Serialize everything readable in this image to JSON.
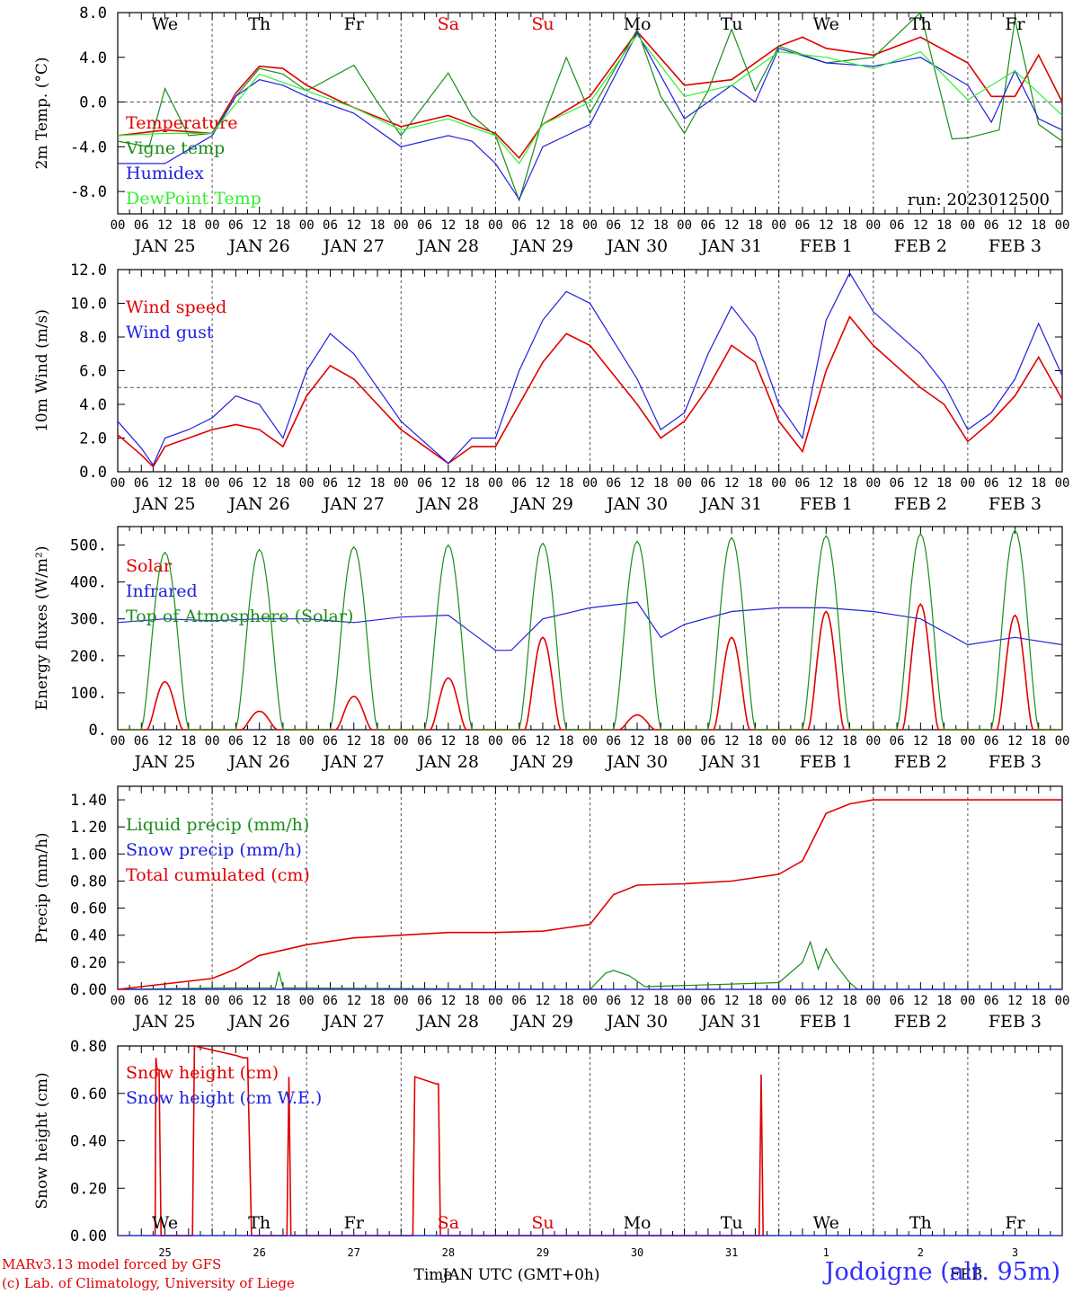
{
  "run_label": "run: 2023012500",
  "day_labels": [
    "We",
    "Th",
    "Fr",
    "Sa",
    "Su",
    "Mo",
    "Tu",
    "We",
    "Th",
    "Fr"
  ],
  "weekend_days": [
    "Sa",
    "Su"
  ],
  "hour_ticks": [
    "00",
    "06",
    "12",
    "18"
  ],
  "date_labels": [
    "JAN 25",
    "JAN 26",
    "JAN 27",
    "JAN 28",
    "JAN 29",
    "JAN 30",
    "JAN 31",
    "FEB  1",
    "FEB  2",
    "FEB  3"
  ],
  "bottom_day_numbers": [
    "25",
    "26",
    "27",
    "28",
    "29",
    "30",
    "31",
    "1",
    "2",
    "3"
  ],
  "bottom_month_labels": [
    "JAN UTC (GMT+0h)",
    "FEB"
  ],
  "x_axis_title": "Time",
  "footer": {
    "credit_line1": "MARv3.13 model forced by GFS",
    "credit_line2": "(c) Lab. of Climatology, University of Liege",
    "station": "Jodoigne (alt. 95m)"
  },
  "colors": {
    "red": "#e00000",
    "green": "#1a8c1a",
    "blue": "#2020e0",
    "lightgreen": "#33ee33",
    "grid": "#555555"
  },
  "chart_data": [
    {
      "type": "line",
      "ylabel": "2m Temp. (°C)",
      "ylim": [
        -10,
        8
      ],
      "yticks": [
        "8.0",
        "4.0",
        "0.0",
        "-4.0",
        "-8.0"
      ],
      "yticks_values": [
        8,
        4,
        0,
        -4,
        -8
      ],
      "reference_line": 0,
      "x_unit": "hours since Jan 25 00 UTC",
      "show_day_labels": true,
      "series": [
        {
          "name": "Temperature",
          "color": "red",
          "x": [
            0,
            12,
            24,
            30,
            36,
            42,
            48,
            60,
            72,
            84,
            96,
            102,
            108,
            120,
            132,
            144,
            156,
            168,
            174,
            180,
            192,
            204,
            216,
            222,
            228,
            234,
            240
          ],
          "values": [
            -3,
            -2.5,
            -2.8,
            0.8,
            3.2,
            3.0,
            1.5,
            -0.5,
            -2.2,
            -1.2,
            -2.8,
            -5,
            -2,
            0.5,
            6.3,
            1.5,
            2.0,
            5.0,
            5.8,
            4.8,
            4.2,
            5.8,
            3.5,
            0.5,
            0.5,
            4.2,
            0
          ]
        },
        {
          "name": "Vigne temp",
          "color": "green",
          "x": [
            0,
            8,
            12,
            18,
            24,
            30,
            36,
            42,
            48,
            60,
            66,
            72,
            84,
            90,
            96,
            102,
            108,
            114,
            120,
            132,
            138,
            144,
            150,
            156,
            162,
            168,
            180,
            192,
            204,
            212,
            216,
            224,
            228,
            234,
            240
          ],
          "values": [
            -3.5,
            -4.0,
            1.2,
            -3.0,
            -2.8,
            0.5,
            3.0,
            2.5,
            1.0,
            3.3,
            0,
            -3,
            2.6,
            -1.2,
            -3,
            -8.8,
            -1.5,
            4,
            -1,
            6.5,
            0.5,
            -2.8,
            1.0,
            6.5,
            1.0,
            5.0,
            3.5,
            4.0,
            8,
            -3.3,
            -3.2,
            -2.5,
            7.4,
            -2.0,
            -3.5
          ]
        },
        {
          "name": "Humidex",
          "color": "blue",
          "x": [
            0,
            12,
            24,
            30,
            36,
            42,
            48,
            60,
            72,
            84,
            90,
            96,
            102,
            108,
            120,
            132,
            144,
            156,
            162,
            168,
            180,
            192,
            204,
            216,
            222,
            228,
            234,
            240
          ],
          "values": [
            -5.5,
            -5.5,
            -3,
            0.5,
            2.0,
            1.5,
            0.5,
            -1,
            -4,
            -3,
            -3.5,
            -5.5,
            -8.7,
            -4,
            -2,
            6.2,
            -1.5,
            1.5,
            0,
            4.8,
            3.5,
            3.2,
            4.0,
            1.5,
            -1.8,
            2.8,
            -1.5,
            -2.5
          ]
        },
        {
          "name": "DewPoint Temp",
          "color": "lightgreen",
          "x": [
            0,
            12,
            24,
            36,
            48,
            60,
            72,
            84,
            96,
            102,
            108,
            120,
            132,
            144,
            156,
            168,
            180,
            192,
            204,
            216,
            228,
            240
          ],
          "values": [
            -3,
            -2.8,
            -2.8,
            2.5,
            1.0,
            -0.5,
            -2.5,
            -1.5,
            -3,
            -5.5,
            -2,
            0,
            6.0,
            0.5,
            1.5,
            4.5,
            4.0,
            3.0,
            4.5,
            0.2,
            2.8,
            -1.2
          ]
        }
      ]
    },
    {
      "type": "line",
      "ylabel": "10m Wind (m/s)",
      "ylim": [
        0,
        12
      ],
      "yticks": [
        "12.0",
        "10.0",
        "8.0",
        "6.0",
        "4.0",
        "2.0",
        "0.0"
      ],
      "yticks_values": [
        12,
        10,
        8,
        6,
        4,
        2,
        0
      ],
      "reference_line": 5,
      "x_unit": "hours since Jan 25 00 UTC",
      "series": [
        {
          "name": "Wind speed",
          "color": "red",
          "x": [
            0,
            6,
            9,
            12,
            18,
            24,
            30,
            36,
            42,
            48,
            54,
            60,
            66,
            72,
            84,
            90,
            96,
            102,
            108,
            114,
            120,
            132,
            138,
            144,
            150,
            156,
            162,
            168,
            174,
            180,
            186,
            192,
            204,
            210,
            216,
            222,
            228,
            234,
            240
          ],
          "values": [
            2.2,
            1.0,
            0.3,
            1.5,
            2.0,
            2.5,
            2.8,
            2.5,
            1.5,
            4.5,
            6.3,
            5.5,
            4.0,
            2.5,
            0.5,
            1.5,
            1.5,
            4.0,
            6.5,
            8.2,
            7.5,
            4.0,
            2.0,
            3.0,
            5.0,
            7.5,
            6.5,
            3.0,
            1.2,
            6.0,
            9.2,
            7.5,
            5.0,
            4.0,
            1.8,
            3.0,
            4.5,
            6.8,
            4.3
          ]
        },
        {
          "name": "Wind gust",
          "color": "blue",
          "x": [
            0,
            6,
            9,
            12,
            18,
            24,
            30,
            36,
            42,
            48,
            54,
            60,
            66,
            72,
            84,
            90,
            96,
            102,
            108,
            114,
            120,
            132,
            138,
            144,
            150,
            156,
            162,
            168,
            174,
            180,
            186,
            192,
            204,
            210,
            216,
            222,
            228,
            234,
            240
          ],
          "values": [
            3.0,
            1.4,
            0.4,
            2.0,
            2.5,
            3.2,
            4.5,
            4.0,
            2.0,
            6.0,
            8.2,
            7.0,
            5.0,
            3.0,
            0.5,
            2.0,
            2.0,
            6.0,
            9.0,
            10.7,
            10.0,
            5.5,
            2.5,
            3.5,
            7.0,
            9.8,
            8.0,
            4.0,
            2.0,
            9.0,
            11.8,
            9.5,
            7.0,
            5.2,
            2.5,
            3.5,
            5.5,
            8.8,
            5.7
          ]
        }
      ]
    },
    {
      "type": "line",
      "ylabel": "Energy fluxes (W/m²)",
      "ylim": [
        0,
        550
      ],
      "yticks": [
        "500.",
        "400.",
        "300.",
        "200.",
        "100.",
        "0."
      ],
      "yticks_values": [
        500,
        400,
        300,
        200,
        100,
        0
      ],
      "x_unit": "hours since Jan 25 00 UTC",
      "series": [
        {
          "name": "Solar",
          "color": "red",
          "diurnal_peaks": [
            130,
            50,
            90,
            140,
            250,
            40,
            250,
            320,
            340,
            310
          ]
        },
        {
          "name": "Infrared",
          "color": "blue",
          "x": [
            0,
            12,
            24,
            36,
            48,
            60,
            72,
            84,
            96,
            100,
            108,
            120,
            132,
            138,
            144,
            156,
            168,
            180,
            192,
            204,
            216,
            228,
            240
          ],
          "values": [
            290,
            300,
            295,
            300,
            300,
            290,
            305,
            310,
            215,
            215,
            300,
            330,
            345,
            250,
            285,
            320,
            330,
            330,
            320,
            300,
            230,
            250,
            230
          ]
        },
        {
          "name": "Top of Atmosphere (Solar)",
          "color": "green",
          "diurnal_peaks": [
            480,
            488,
            495,
            500,
            505,
            510,
            520,
            525,
            530,
            540
          ]
        }
      ]
    },
    {
      "type": "line",
      "ylabel": "Precip (mm/h)",
      "ylim": [
        0,
        1.5
      ],
      "yticks": [
        "1.40",
        "1.20",
        "1.00",
        "0.80",
        "0.60",
        "0.40",
        "0.20",
        "0.00"
      ],
      "yticks_values": [
        1.4,
        1.2,
        1.0,
        0.8,
        0.6,
        0.4,
        0.2,
        0
      ],
      "x_unit": "hours since Jan 25 00 UTC",
      "series": [
        {
          "name": "Liquid precip (mm/h)",
          "color": "green",
          "x": [
            0,
            24,
            40,
            41,
            42,
            48,
            120,
            124,
            126,
            130,
            134,
            168,
            174,
            176,
            178,
            180,
            182,
            186,
            188,
            240
          ],
          "values": [
            0,
            0.01,
            0.01,
            0.13,
            0.01,
            0.01,
            0,
            0.12,
            0.14,
            0.1,
            0.02,
            0.05,
            0.2,
            0.35,
            0.15,
            0.3,
            0.2,
            0.05,
            0,
            0
          ]
        },
        {
          "name": "Snow precip (mm/h)",
          "color": "blue",
          "x": [
            0,
            240
          ],
          "values": [
            0,
            0
          ]
        },
        {
          "name": "Total cumulated (cm)",
          "color": "red",
          "x": [
            0,
            24,
            30,
            36,
            48,
            60,
            72,
            84,
            96,
            108,
            120,
            126,
            132,
            144,
            156,
            168,
            174,
            180,
            186,
            192,
            240
          ],
          "values": [
            0,
            0.08,
            0.15,
            0.25,
            0.33,
            0.38,
            0.4,
            0.42,
            0.42,
            0.43,
            0.48,
            0.7,
            0.77,
            0.78,
            0.8,
            0.85,
            0.95,
            1.3,
            1.37,
            1.4,
            1.4
          ]
        }
      ]
    },
    {
      "type": "line",
      "ylabel": "Snow height (cm)",
      "ylim": [
        0,
        0.8
      ],
      "yticks": [
        "0.80",
        "0.60",
        "0.40",
        "0.20",
        "0.00"
      ],
      "yticks_values": [
        0.8,
        0.6,
        0.4,
        0.2,
        0
      ],
      "x_unit": "hours since Jan 25 00 UTC",
      "show_day_labels": true,
      "bottom_axis": true,
      "series": [
        {
          "name": "Snow height (cm)",
          "color": "red",
          "x": [
            9.5,
            9.7,
            10,
            10.5,
            11,
            19,
            19.5,
            30,
            32,
            33,
            34,
            43,
            43.5,
            44,
            75,
            75.5,
            81,
            81.5,
            82,
            163,
            163.5,
            164
          ],
          "values": [
            0,
            0.75,
            0.7,
            0.7,
            0,
            0,
            0.8,
            0.76,
            0.75,
            0.75,
            0,
            0,
            0.67,
            0,
            0,
            0.67,
            0.64,
            0.64,
            0,
            0,
            0.68,
            0
          ]
        },
        {
          "name": "Snow height (cm W.E.)",
          "color": "blue",
          "x": [
            0,
            240
          ],
          "values": [
            0,
            0
          ]
        }
      ]
    }
  ]
}
